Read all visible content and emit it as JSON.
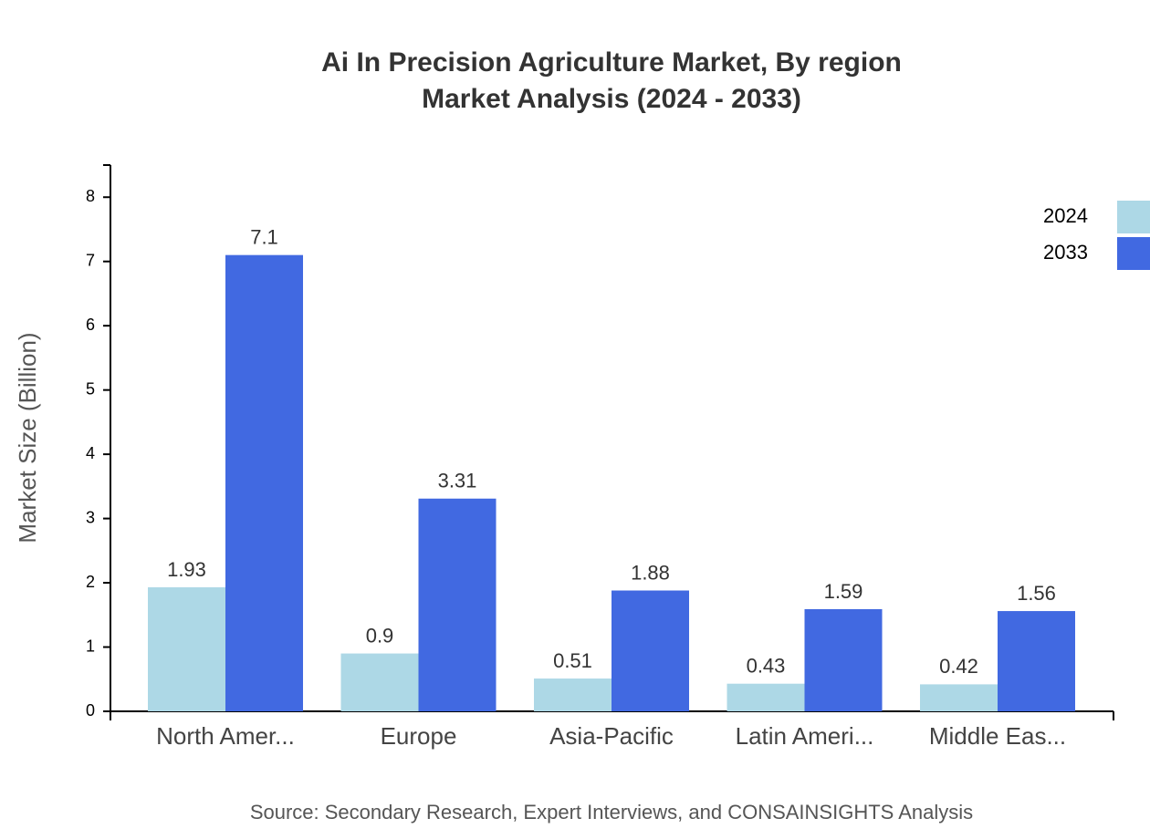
{
  "chart_data": {
    "type": "bar",
    "title": "Ai In Precision Agriculture Market, By region",
    "subtitle": "Market Analysis (2024 - 2033)",
    "y_label": "Market Size (Billion)",
    "source": "Source: Secondary Research, Expert Interviews, and CONSAINSIGHTS Analysis",
    "categories": [
      "North Amer...",
      "Europe",
      "Asia-Pacific",
      "Latin Ameri...",
      "Middle Eas..."
    ],
    "series": [
      {
        "name": "2024",
        "color": "#add8e6",
        "values": [
          1.93,
          0.9,
          0.51,
          0.43,
          0.42
        ]
      },
      {
        "name": "2033",
        "color": "#4169e1",
        "values": [
          7.1,
          3.31,
          1.88,
          1.59,
          1.56
        ]
      }
    ],
    "ylim": [
      0,
      8.5
    ],
    "yticks": [
      0,
      1,
      2,
      3,
      4,
      5,
      6,
      7,
      8
    ],
    "legend": "top-right"
  }
}
